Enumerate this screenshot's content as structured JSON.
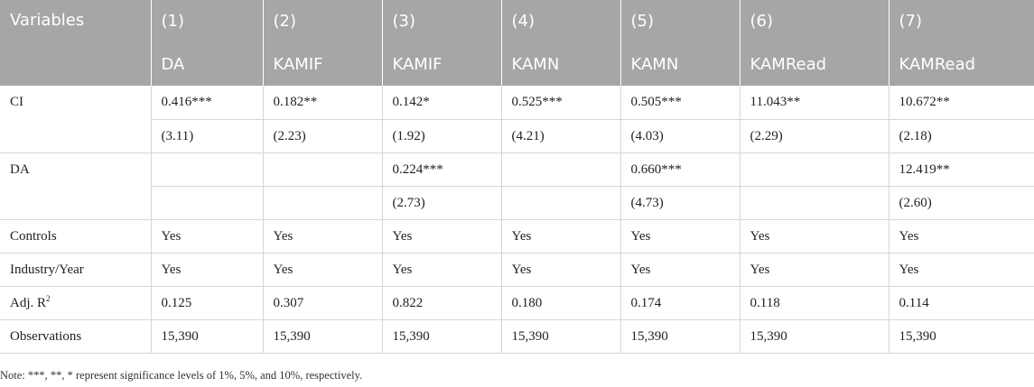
{
  "table": {
    "header_row1": [
      "Variables",
      "(1)",
      "(2)",
      "(3)",
      "(4)",
      "(5)",
      "(6)",
      "(7)"
    ],
    "header_row2": [
      "DA",
      "KAMIF",
      "KAMIF",
      "KAMN",
      "KAMN",
      "KAMRead",
      "KAMRead"
    ],
    "ci": {
      "label": "CI",
      "coef": [
        "0.416***",
        "0.182**",
        "0.142*",
        "0.525***",
        "0.505***",
        "11.043**",
        "10.672**"
      ],
      "t": [
        "(3.11)",
        "(2.23)",
        "(1.92)",
        "(4.21)",
        "(4.03)",
        "(2.29)",
        "(2.18)"
      ]
    },
    "da": {
      "label": "DA",
      "coef": [
        "",
        "",
        "0.224***",
        "",
        "0.660***",
        "",
        "12.419**"
      ],
      "t": [
        "",
        "",
        "(2.73)",
        "",
        "(4.73)",
        "",
        "(2.60)"
      ]
    },
    "rows": [
      {
        "label": "Controls",
        "values": [
          "Yes",
          "Yes",
          "Yes",
          "Yes",
          "Yes",
          "Yes",
          "Yes"
        ]
      },
      {
        "label": "Industry/Year",
        "values": [
          "Yes",
          "Yes",
          "Yes",
          "Yes",
          "Yes",
          "Yes",
          "Yes"
        ]
      }
    ],
    "adjr2": {
      "label_prefix": "Adj. R",
      "label_sup": "2",
      "values": [
        "0.125",
        "0.307",
        "0.822",
        "0.180",
        "0.174",
        "0.118",
        "0.114"
      ]
    },
    "observations": {
      "label": "Observations",
      "values": [
        "15,390",
        "15,390",
        "15,390",
        "15,390",
        "15,390",
        "15,390",
        "15,390"
      ]
    }
  },
  "note": "Note: ***, **, * represent significance levels of 1%, 5%, and 10%, respectively."
}
